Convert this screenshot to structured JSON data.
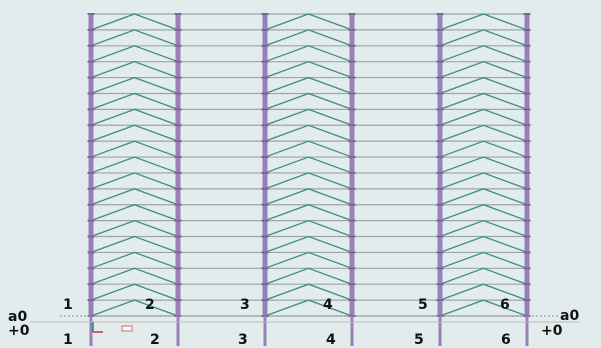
{
  "colors": {
    "background": "#e3ecec",
    "column": "#9a80b8",
    "beam": "#9aa6a6",
    "brace": "#3f8a8a",
    "axis_line": "#8a8a8a",
    "label": "#111111"
  },
  "frame": {
    "grid_axes": [
      "1",
      "2",
      "3",
      "4",
      "5",
      "6"
    ],
    "braced_bays": [
      1,
      3,
      5
    ],
    "stories": 19,
    "brace_pattern": "chevron"
  },
  "bottom_labels": {
    "top_row": [
      "1",
      "2",
      "3",
      "4",
      "5",
      "6"
    ],
    "bottom_row": [
      "1",
      "2",
      "3",
      "4",
      "5",
      "6"
    ],
    "left_top": "a0",
    "left_bottom": "+0",
    "right_top": "a0",
    "right_bottom": "+0"
  },
  "icons": {
    "ucs": "ucs-axis-icon"
  }
}
